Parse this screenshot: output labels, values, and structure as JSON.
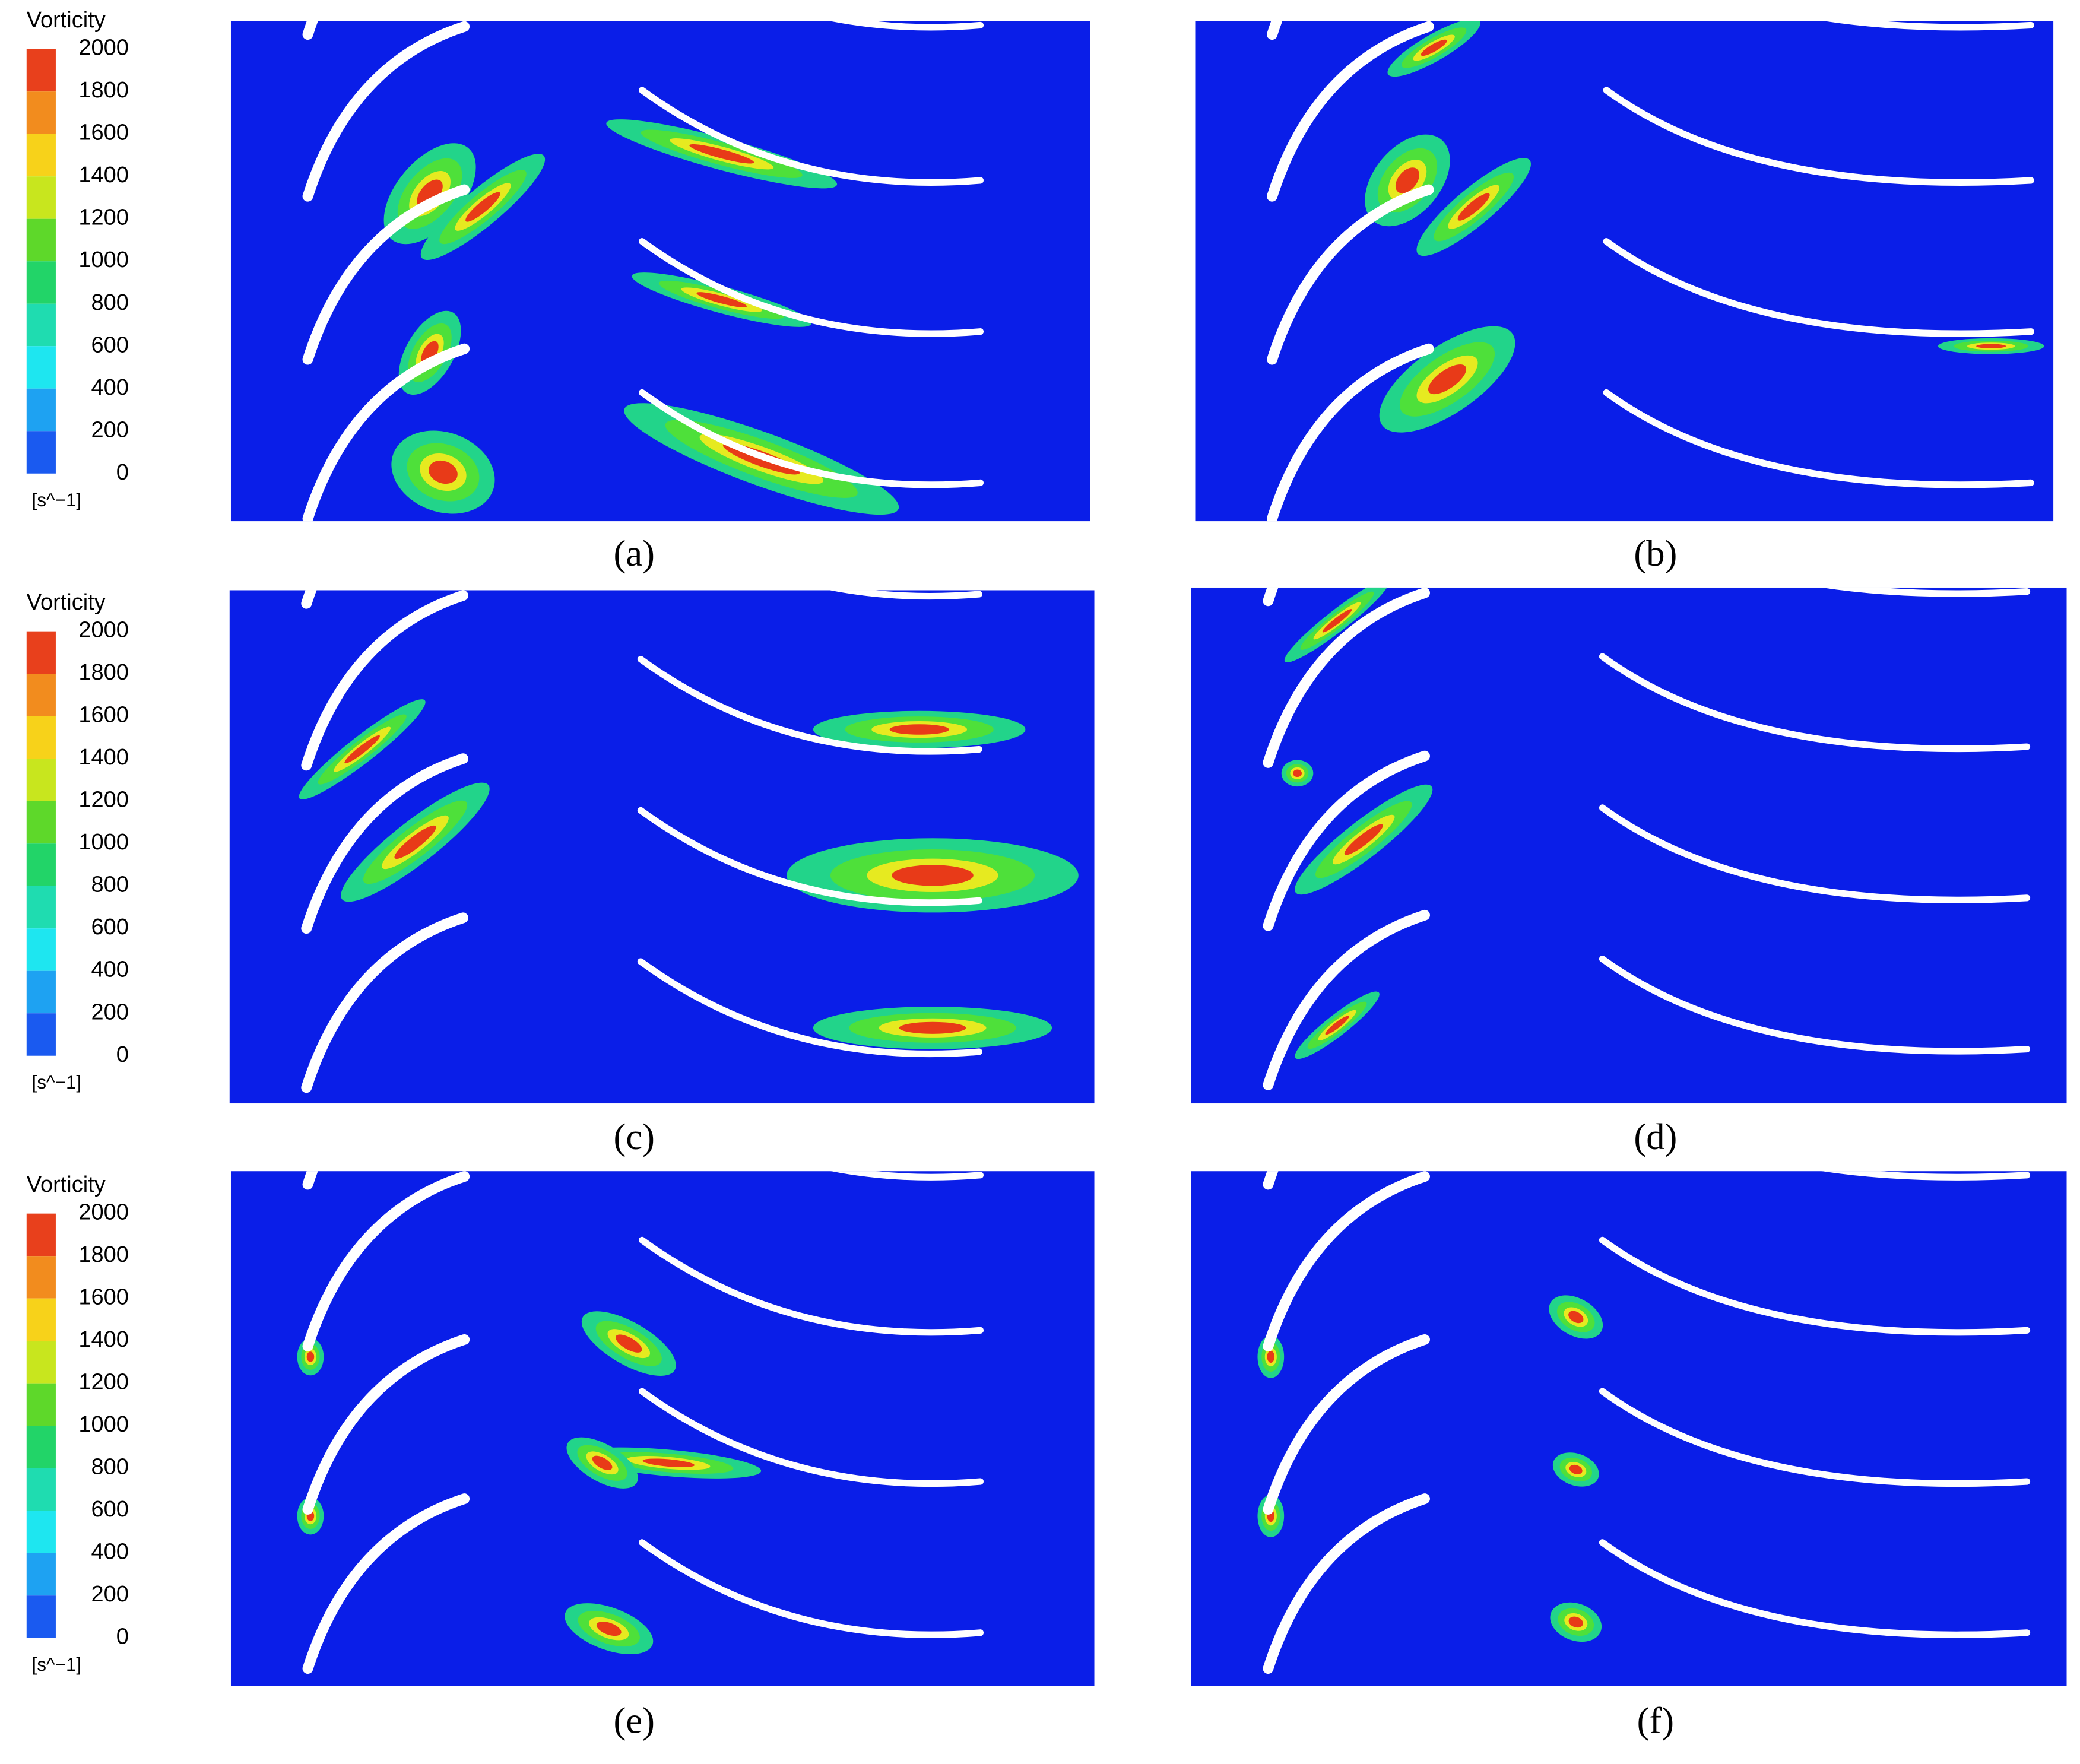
{
  "legends": [
    {
      "title": "Vorticity",
      "ticks": [
        2000,
        1800,
        1600,
        1400,
        1200,
        1000,
        800,
        600,
        400,
        200,
        0
      ],
      "unit": "[s^−1]"
    },
    {
      "title": "Vorticity",
      "ticks": [
        2000,
        1800,
        1600,
        1400,
        1200,
        1000,
        800,
        600,
        400,
        200,
        0
      ],
      "unit": "[s^−1]"
    },
    {
      "title": "Vorticity",
      "ticks": [
        2000,
        1800,
        1600,
        1400,
        1200,
        1000,
        800,
        600,
        400,
        200,
        0
      ],
      "unit": "[s^−1]"
    }
  ],
  "panels": [
    {
      "label": "(a)"
    },
    {
      "label": "(b)"
    },
    {
      "label": "(c)"
    },
    {
      "label": "(d)"
    },
    {
      "label": "(e)"
    },
    {
      "label": "(f)"
    }
  ]
}
